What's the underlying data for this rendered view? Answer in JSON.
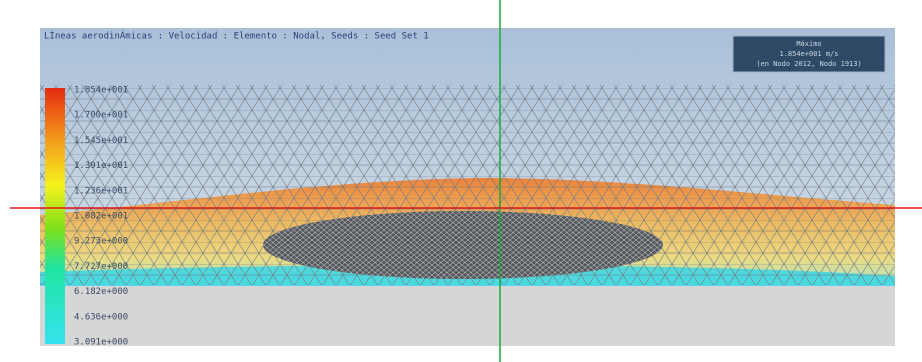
{
  "viewport": {
    "title": "LÍneas aerodinÁmicas : Velocidad : Elemento : Nodal, Seeds : Seed Set 1",
    "info_box": [
      "Máximo",
      "1.854e+001 m/s",
      "(en Nodo 2012, Nodo 1913)"
    ],
    "legend_labels": [
      "1.854e+001",
      "1.700e+001",
      "1.545e+001",
      "1.391e+001",
      "1.236e+001",
      "1.082e+001",
      "9.273e+000",
      "7.727e+000",
      "6.182e+000",
      "4.636e+000",
      "3.091e+000"
    ]
  }
}
